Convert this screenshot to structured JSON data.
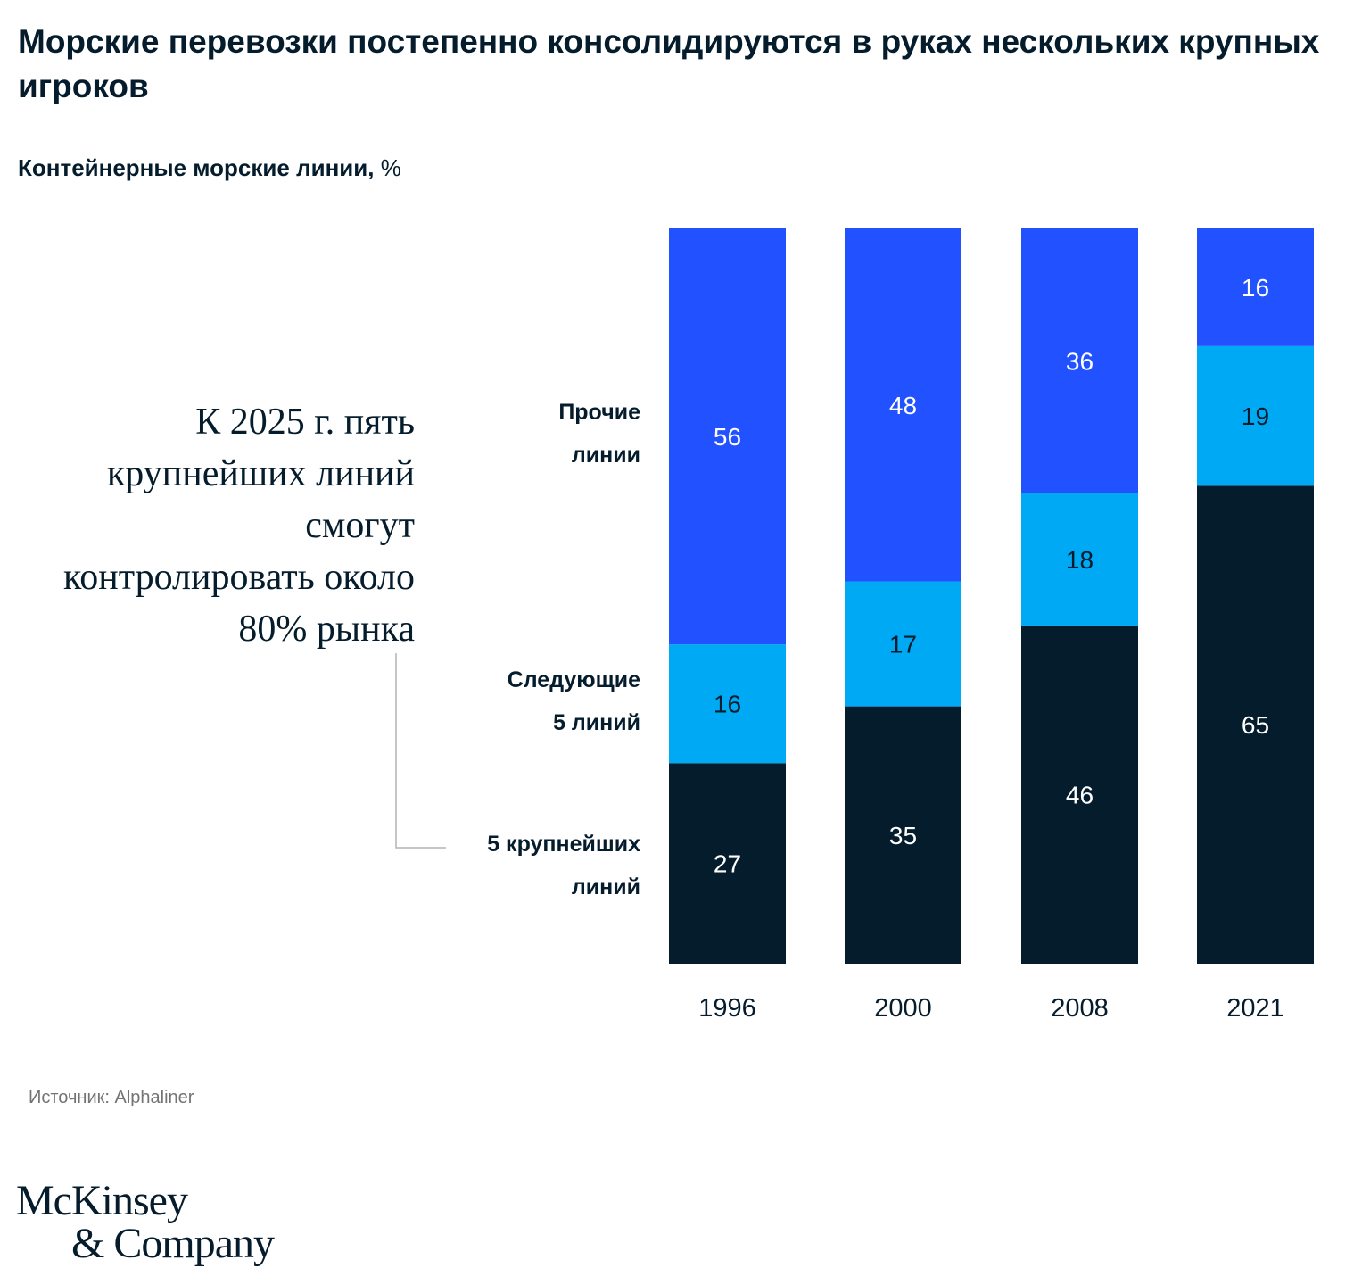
{
  "title": "Морские перевозки постепенно консолидируются в руках нескольких крупных игроков",
  "subtitle": {
    "bold": "Контейнерные морские линии,",
    "unit": "%"
  },
  "annotation": "К 2025 г. пять крупнейших линий смогут контролировать около 80% рынка",
  "source": "Источник: Alphaliner",
  "logo": {
    "line1": "McKinsey",
    "line2": "& Company"
  },
  "colors": {
    "top5": "#051c2c",
    "next5": "#00a9f4",
    "other": "#2251ff",
    "connector": "#b3b3b3"
  },
  "chart_data": {
    "type": "bar",
    "stacked": true,
    "categories": [
      "1996",
      "2000",
      "2008",
      "2021"
    ],
    "series": [
      {
        "name": "5 крупнейших линий",
        "values": [
          27,
          35,
          46,
          65
        ]
      },
      {
        "name": "Следующие 5 линий",
        "values": [
          16,
          17,
          18,
          19
        ]
      },
      {
        "name": "Прочие линии",
        "values": [
          56,
          48,
          36,
          16
        ]
      }
    ],
    "ylim": [
      0,
      100
    ],
    "legend_position": "left"
  },
  "legend": [
    {
      "line1": "5 крупнейших",
      "line2": "линий"
    },
    {
      "line1": "Следующие",
      "line2": "5 линий"
    },
    {
      "line1": "Прочие",
      "line2": "линии"
    }
  ]
}
